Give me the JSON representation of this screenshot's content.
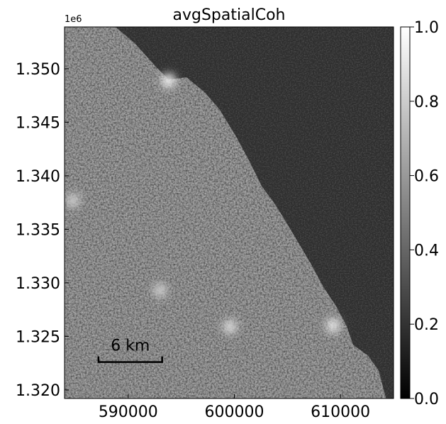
{
  "chart_data": {
    "type": "heatmap",
    "title": "avgSpatialCoh",
    "xlabel": "",
    "ylabel": "",
    "colormap": "gray",
    "xlim": [
      584000,
      615000
    ],
    "ylim": [
      1319200,
      1353900
    ],
    "x_ticks": [
      590000,
      600000,
      610000
    ],
    "x_tick_labels": [
      "590000",
      "600000",
      "610000"
    ],
    "y_ticks": [
      1320000,
      1325000,
      1330000,
      1335000,
      1340000,
      1345000,
      1350000
    ],
    "y_tick_labels": [
      "1.320",
      "1.325",
      "1.330",
      "1.335",
      "1.340",
      "1.345",
      "1.350"
    ],
    "y_offset_label": "1e6",
    "colorbar": {
      "vmin": 0.0,
      "vmax": 1.0,
      "ticks": [
        0.0,
        0.2,
        0.4,
        0.6,
        0.8,
        1.0
      ],
      "tick_labels": [
        "0.0",
        "0.2",
        "0.4",
        "0.6",
        "0.8",
        "1.0"
      ]
    },
    "scale_bar": {
      "label": "6 km",
      "length_m": 6000
    },
    "regions": {
      "land_coherence": 0.55,
      "sea_coherence": 0.18,
      "coastline": [
        [
          584000,
          1353900
        ],
        [
          588800,
          1353900
        ],
        [
          590600,
          1352400
        ],
        [
          592600,
          1350200
        ],
        [
          593800,
          1349000
        ],
        [
          595500,
          1349200
        ],
        [
          597200,
          1347800
        ],
        [
          598600,
          1346200
        ],
        [
          600200,
          1343600
        ],
        [
          601400,
          1341400
        ],
        [
          602600,
          1339000
        ],
        [
          603800,
          1337400
        ],
        [
          604800,
          1335800
        ],
        [
          606000,
          1333800
        ],
        [
          607200,
          1331800
        ],
        [
          608400,
          1329600
        ],
        [
          609600,
          1327800
        ],
        [
          610600,
          1325900
        ],
        [
          611200,
          1324200
        ],
        [
          612600,
          1323200
        ],
        [
          613600,
          1321800
        ],
        [
          614000,
          1320300
        ],
        [
          614300,
          1319200
        ]
      ],
      "bright_features": [
        {
          "x": 593800,
          "y": 1348900,
          "value": 0.95
        },
        {
          "x": 599600,
          "y": 1325900,
          "value": 0.85
        },
        {
          "x": 609300,
          "y": 1326000,
          "value": 0.9
        },
        {
          "x": 584800,
          "y": 1337700,
          "value": 0.8
        },
        {
          "x": 593000,
          "y": 1329300,
          "value": 0.8
        }
      ]
    }
  }
}
